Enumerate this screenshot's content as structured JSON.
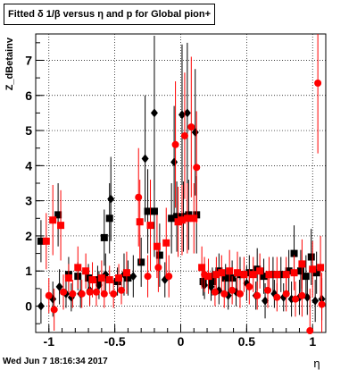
{
  "chart_data": {
    "type": "scatter",
    "title": "Fitted δ 1/β versus η and p for Global pion+",
    "ylabel": "Z_dBetainv",
    "xlabel": "η",
    "xlim": [
      -1.1,
      1.1
    ],
    "ylim": [
      -0.75,
      7.75
    ],
    "xticks": [
      "-1",
      "-0.5",
      "0",
      "0.5",
      "1"
    ],
    "yticks": [
      "0",
      "1",
      "2",
      "3",
      "4",
      "5",
      "6",
      "7"
    ],
    "grid": true,
    "series": [
      {
        "color": "#000000",
        "marker": "square",
        "points": [
          [
            -1.06,
            1.85,
            0.6
          ],
          [
            -0.93,
            2.6,
            0.9
          ],
          [
            -0.85,
            0.9,
            0.5
          ],
          [
            -0.78,
            0.85,
            0.4
          ],
          [
            -0.7,
            0.8,
            0.4
          ],
          [
            -0.63,
            0.75,
            0.4
          ],
          [
            -0.58,
            1.95,
            0.8
          ],
          [
            -0.54,
            2.5,
            1.0
          ],
          [
            -0.48,
            0.7,
            0.4
          ],
          [
            -0.4,
            0.8,
            0.5
          ],
          [
            -0.3,
            1.25,
            0.7
          ],
          [
            -0.25,
            2.7,
            1.2
          ],
          [
            -0.2,
            2.7,
            1.3
          ],
          [
            -0.16,
            1.45,
            0.9
          ],
          [
            -0.07,
            2.5,
            1.0
          ],
          [
            -0.03,
            2.55,
            1.0
          ],
          [
            0.02,
            2.55,
            1.0
          ],
          [
            0.06,
            2.6,
            1.0
          ],
          [
            0.12,
            2.6,
            1.1
          ],
          [
            0.17,
            0.7,
            0.4
          ],
          [
            0.24,
            0.7,
            0.4
          ],
          [
            0.29,
            1.0,
            0.5
          ],
          [
            0.34,
            0.8,
            0.4
          ],
          [
            0.39,
            0.8,
            0.5
          ],
          [
            0.45,
            0.9,
            0.5
          ],
          [
            0.52,
            0.95,
            0.5
          ],
          [
            0.58,
            1.05,
            0.6
          ],
          [
            0.63,
            0.85,
            0.5
          ],
          [
            0.7,
            0.9,
            0.5
          ],
          [
            0.76,
            0.9,
            0.5
          ],
          [
            0.82,
            1.0,
            0.6
          ],
          [
            0.86,
            1.5,
            0.8
          ],
          [
            0.91,
            1.0,
            0.6
          ],
          [
            0.95,
            0.85,
            0.6
          ],
          [
            0.99,
            1.4,
            0.8
          ],
          [
            1.03,
            0.95,
            0.6
          ]
        ]
      },
      {
        "color": "#000000",
        "marker": "diamond",
        "points": [
          [
            -1.06,
            0.0,
            0.5
          ],
          [
            -0.97,
            0.2,
            0.5
          ],
          [
            -0.92,
            0.55,
            0.5
          ],
          [
            -0.87,
            0.35,
            0.4
          ],
          [
            -0.83,
            0.25,
            0.4
          ],
          [
            -0.76,
            0.35,
            0.4
          ],
          [
            -0.69,
            0.45,
            0.4
          ],
          [
            -0.62,
            0.6,
            0.4
          ],
          [
            -0.57,
            0.9,
            0.6
          ],
          [
            -0.53,
            3.05,
            1.2
          ],
          [
            -0.43,
            0.9,
            0.6
          ],
          [
            -0.36,
            0.85,
            0.6
          ],
          [
            -0.27,
            4.2,
            1.8
          ],
          [
            -0.2,
            5.5,
            2.2
          ],
          [
            -0.12,
            0.75,
            0.5
          ],
          [
            -0.05,
            4.1,
            1.6
          ],
          [
            0.01,
            5.45,
            2.0
          ],
          [
            0.05,
            5.5,
            2.0
          ],
          [
            0.11,
            4.95,
            1.8
          ],
          [
            0.18,
            0.6,
            0.4
          ],
          [
            0.23,
            0.55,
            0.4
          ],
          [
            0.29,
            0.45,
            0.4
          ],
          [
            0.36,
            0.3,
            0.4
          ],
          [
            0.42,
            0.4,
            0.4
          ],
          [
            0.5,
            0.65,
            0.5
          ],
          [
            0.57,
            0.3,
            0.4
          ],
          [
            0.64,
            0.15,
            0.5
          ],
          [
            0.71,
            0.35,
            0.4
          ],
          [
            0.78,
            0.25,
            0.4
          ],
          [
            0.84,
            0.2,
            0.5
          ],
          [
            0.9,
            0.25,
            0.5
          ],
          [
            0.96,
            0.25,
            0.5
          ],
          [
            1.02,
            0.15,
            0.6
          ],
          [
            1.07,
            0.2,
            0.6
          ]
        ]
      },
      {
        "color": "#ff0000",
        "marker": "square",
        "points": [
          [
            -1.02,
            1.85,
            0.8
          ],
          [
            -0.97,
            2.45,
            1.0
          ],
          [
            -0.91,
            2.3,
            1.0
          ],
          [
            -0.85,
            0.8,
            0.4
          ],
          [
            -0.78,
            1.1,
            0.6
          ],
          [
            -0.72,
            1.0,
            0.5
          ],
          [
            -0.67,
            0.75,
            0.5
          ],
          [
            -0.6,
            0.8,
            0.5
          ],
          [
            -0.54,
            0.75,
            0.4
          ],
          [
            -0.47,
            0.8,
            0.4
          ],
          [
            -0.41,
            0.95,
            0.6
          ],
          [
            -0.31,
            2.4,
            1.2
          ],
          [
            -0.23,
            2.3,
            1.3
          ],
          [
            -0.18,
            1.7,
            0.9
          ],
          [
            -0.11,
            1.8,
            1.0
          ],
          [
            -0.02,
            2.4,
            1.0
          ],
          [
            0.01,
            2.45,
            1.0
          ],
          [
            0.05,
            2.5,
            1.0
          ],
          [
            0.1,
            2.5,
            1.0
          ],
          [
            0.16,
            1.1,
            0.6
          ],
          [
            0.21,
            0.85,
            0.5
          ],
          [
            0.27,
            0.9,
            0.5
          ],
          [
            0.31,
            0.95,
            0.5
          ],
          [
            0.37,
            1.0,
            0.6
          ],
          [
            0.43,
            0.95,
            0.6
          ],
          [
            0.48,
            0.9,
            0.5
          ],
          [
            0.55,
            0.9,
            0.5
          ],
          [
            0.6,
            1.0,
            0.5
          ],
          [
            0.67,
            0.9,
            0.5
          ],
          [
            0.73,
            0.9,
            0.5
          ],
          [
            0.8,
            0.9,
            0.5
          ],
          [
            0.86,
            0.95,
            0.5
          ],
          [
            0.92,
            1.2,
            0.7
          ],
          [
            1.0,
            1.05,
            0.8
          ],
          [
            1.06,
            1.1,
            0.9
          ]
        ]
      },
      {
        "color": "#ff0000",
        "marker": "circle",
        "points": [
          [
            -1.0,
            0.3,
            0.5
          ],
          [
            -0.96,
            -0.1,
            0.6
          ],
          [
            -0.89,
            0.4,
            0.5
          ],
          [
            -0.82,
            0.35,
            0.4
          ],
          [
            -0.75,
            0.35,
            0.4
          ],
          [
            -0.69,
            0.4,
            0.4
          ],
          [
            -0.64,
            0.4,
            0.4
          ],
          [
            -0.58,
            0.35,
            0.4
          ],
          [
            -0.51,
            0.35,
            0.4
          ],
          [
            -0.45,
            0.45,
            0.4
          ],
          [
            -0.32,
            3.1,
            1.4
          ],
          [
            -0.25,
            0.85,
            0.6
          ],
          [
            -0.17,
            1.1,
            0.7
          ],
          [
            -0.09,
            0.85,
            0.6
          ],
          [
            -0.04,
            4.6,
            1.8
          ],
          [
            0.03,
            4.85,
            1.8
          ],
          [
            0.08,
            5.1,
            2.0
          ],
          [
            0.12,
            3.95,
            1.6
          ],
          [
            0.18,
            0.9,
            0.5
          ],
          [
            0.26,
            0.4,
            0.4
          ],
          [
            0.33,
            0.35,
            0.4
          ],
          [
            0.39,
            0.45,
            0.4
          ],
          [
            0.45,
            0.35,
            0.4
          ],
          [
            0.52,
            0.55,
            0.5
          ],
          [
            0.58,
            0.3,
            0.4
          ],
          [
            0.66,
            0.45,
            0.5
          ],
          [
            0.73,
            0.25,
            0.4
          ],
          [
            0.8,
            0.35,
            0.5
          ],
          [
            0.87,
            0.2,
            0.5
          ],
          [
            0.92,
            0.3,
            0.6
          ],
          [
            0.98,
            -0.7,
            1.2
          ],
          [
            1.04,
            6.35,
            2.0
          ],
          [
            1.07,
            0.05,
            0.9
          ]
        ]
      }
    ]
  },
  "timestamp": "Wed Jun  7 18:16:34 2017"
}
